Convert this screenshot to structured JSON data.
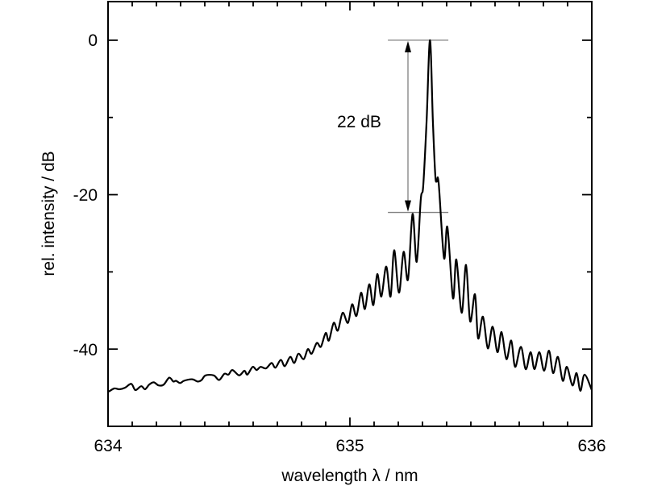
{
  "chart_data": {
    "type": "line",
    "title": "",
    "xlabel": "wavelength λ / nm",
    "ylabel": "rel. intensity / dB",
    "xlim": [
      634,
      636
    ],
    "ylim": [
      -50,
      5
    ],
    "x_major_ticks": [
      634,
      635,
      636
    ],
    "x_tick_labels": [
      "634",
      "635",
      "636"
    ],
    "x_minor_step": 0.1,
    "y_major_ticks": [
      0,
      -20,
      -40
    ],
    "y_tick_labels": [
      "0",
      "-20",
      "-40"
    ],
    "y_minor_ticks": [
      -10,
      -30,
      -50
    ],
    "grid": false,
    "line_color": "#000000",
    "annotation": {
      "label": "22 dB",
      "upper_level": 0,
      "lower_level": -22.3,
      "x_from": 635.157,
      "x_to": 635.407,
      "arrow_x": 635.24,
      "color": "#808080"
    },
    "series": [
      {
        "name": "spectrum",
        "points": [
          [
            634.003,
            -45.5
          ],
          [
            634.026,
            -45.1
          ],
          [
            634.047,
            -45.2
          ],
          [
            634.07,
            -45.0
          ],
          [
            634.096,
            -44.5
          ],
          [
            634.113,
            -45.3
          ],
          [
            634.137,
            -44.8
          ],
          [
            634.153,
            -45.2
          ],
          [
            634.17,
            -44.6
          ],
          [
            634.189,
            -44.3
          ],
          [
            634.209,
            -44.7
          ],
          [
            634.23,
            -44.6
          ],
          [
            634.253,
            -43.7
          ],
          [
            634.27,
            -44.2
          ],
          [
            634.281,
            -44.1
          ],
          [
            634.298,
            -44.4
          ],
          [
            634.314,
            -44.1
          ],
          [
            634.348,
            -43.9
          ],
          [
            634.37,
            -44.2
          ],
          [
            634.387,
            -44.0
          ],
          [
            634.403,
            -43.4
          ],
          [
            634.437,
            -43.4
          ],
          [
            634.459,
            -44.0
          ],
          [
            634.481,
            -43.2
          ],
          [
            634.498,
            -43.3
          ],
          [
            634.514,
            -42.7
          ],
          [
            634.542,
            -43.4
          ],
          [
            634.564,
            -42.8
          ],
          [
            634.576,
            -43.3
          ],
          [
            634.598,
            -42.3
          ],
          [
            634.614,
            -42.7
          ],
          [
            634.631,
            -42.3
          ],
          [
            634.653,
            -42.5
          ],
          [
            634.676,
            -41.8
          ],
          [
            634.692,
            -42.4
          ],
          [
            634.714,
            -41.4
          ],
          [
            634.731,
            -42.2
          ],
          [
            634.753,
            -41.0
          ],
          [
            634.77,
            -41.8
          ],
          [
            634.787,
            -40.6
          ],
          [
            634.809,
            -41.3
          ],
          [
            634.826,
            -40.0
          ],
          [
            634.842,
            -40.6
          ],
          [
            634.863,
            -39.2
          ],
          [
            634.88,
            -39.7
          ],
          [
            634.9,
            -37.9
          ],
          [
            634.913,
            -38.9
          ],
          [
            634.933,
            -36.6
          ],
          [
            634.95,
            -37.6
          ],
          [
            634.97,
            -35.3
          ],
          [
            634.992,
            -36.6
          ],
          [
            635.009,
            -34.2
          ],
          [
            635.027,
            -35.7
          ],
          [
            635.046,
            -32.7
          ],
          [
            635.062,
            -34.8
          ],
          [
            635.08,
            -31.6
          ],
          [
            635.097,
            -34.3
          ],
          [
            635.113,
            -30.3
          ],
          [
            635.13,
            -33.2
          ],
          [
            635.15,
            -29.3
          ],
          [
            635.168,
            -33.2
          ],
          [
            635.183,
            -27.2
          ],
          [
            635.203,
            -32.7
          ],
          [
            635.222,
            -27.4
          ],
          [
            635.24,
            -31.0
          ],
          [
            635.259,
            -22.5
          ],
          [
            635.276,
            -28.7
          ],
          [
            635.293,
            -20.6
          ],
          [
            635.303,
            -18.9
          ],
          [
            635.317,
            -10.5
          ],
          [
            635.331,
            0.0
          ],
          [
            635.343,
            -10.5
          ],
          [
            635.353,
            -17.5
          ],
          [
            635.359,
            -18.3
          ],
          [
            635.367,
            -18.5
          ],
          [
            635.389,
            -28.2
          ],
          [
            635.403,
            -24.2
          ],
          [
            635.426,
            -33.4
          ],
          [
            635.44,
            -28.4
          ],
          [
            635.462,
            -35.3
          ],
          [
            635.48,
            -29.1
          ],
          [
            635.497,
            -36.4
          ],
          [
            635.517,
            -32.9
          ],
          [
            635.53,
            -38.6
          ],
          [
            635.55,
            -35.8
          ],
          [
            635.57,
            -39.9
          ],
          [
            635.59,
            -37.1
          ],
          [
            635.61,
            -40.4
          ],
          [
            635.627,
            -37.8
          ],
          [
            635.647,
            -41.3
          ],
          [
            635.667,
            -38.9
          ],
          [
            635.683,
            -42.3
          ],
          [
            635.707,
            -39.7
          ],
          [
            635.727,
            -42.6
          ],
          [
            635.747,
            -40.4
          ],
          [
            635.763,
            -42.6
          ],
          [
            635.783,
            -40.4
          ],
          [
            635.803,
            -42.8
          ],
          [
            635.823,
            -40.2
          ],
          [
            635.84,
            -43.1
          ],
          [
            635.86,
            -41.0
          ],
          [
            635.88,
            -44.1
          ],
          [
            635.897,
            -42.3
          ],
          [
            635.92,
            -44.7
          ],
          [
            635.937,
            -43.1
          ],
          [
            635.953,
            -45.4
          ],
          [
            635.97,
            -43.3
          ],
          [
            636.0,
            -45.3
          ]
        ]
      }
    ]
  }
}
